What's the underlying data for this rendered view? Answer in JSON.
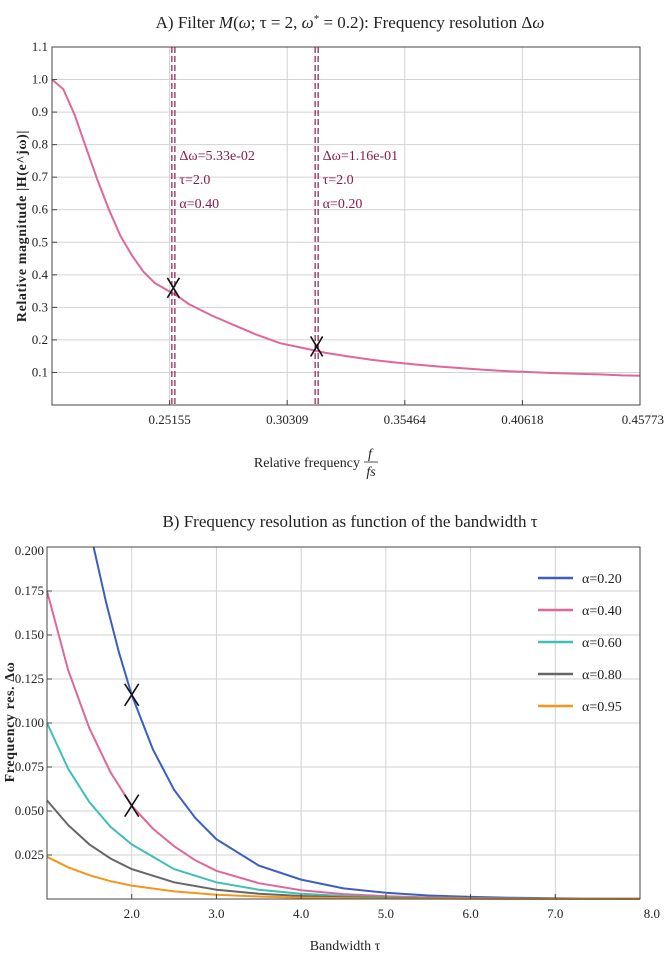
{
  "colors": {
    "alpha_020": "#3a5fbf",
    "alpha_040": "#e0669c",
    "alpha_060": "#3fbfb5",
    "alpha_080": "#666666",
    "alpha_095": "#f3961b",
    "grid": "#d2d2d2",
    "annotation": "#8a1a4f"
  },
  "chart_data": [
    {
      "type": "line",
      "title_parts": [
        "A) Filter ",
        "M",
        "(",
        "ω",
        "; τ = 2, ",
        "ω",
        "*",
        " = 0.2): Frequency resolution Δ",
        "ω"
      ],
      "xlabel": "Relative frequency",
      "xlabel_fraction": {
        "num": "f",
        "den": "fs"
      },
      "ylabel": "Relative magnitude |H(e^jω)|",
      "x_ticks": [
        "0.25155",
        "0.30309",
        "0.35464",
        "0.40618",
        "0.45773"
      ],
      "y_ticks": [
        "0.1",
        "0.2",
        "0.3",
        "0.4",
        "0.5",
        "0.6",
        "0.7",
        "0.8",
        "0.9",
        "1.0",
        "1.1"
      ],
      "xlim": [
        0.2,
        0.45773
      ],
      "ylim": [
        0.0,
        1.1
      ],
      "grid": true,
      "series": [
        {
          "color": "#e0669c",
          "x": [
            0.2,
            0.205,
            0.21,
            0.215,
            0.22,
            0.225,
            0.23,
            0.235,
            0.24,
            0.245,
            0.25,
            0.255,
            0.26,
            0.27,
            0.28,
            0.29,
            0.3,
            0.31,
            0.32,
            0.33,
            0.34,
            0.35,
            0.36,
            0.37,
            0.38,
            0.39,
            0.4,
            0.41,
            0.42,
            0.43,
            0.44,
            0.45,
            0.45773
          ],
          "y": [
            1.0,
            0.97,
            0.89,
            0.79,
            0.69,
            0.6,
            0.52,
            0.46,
            0.41,
            0.375,
            0.355,
            0.335,
            0.31,
            0.275,
            0.245,
            0.215,
            0.19,
            0.175,
            0.16,
            0.149,
            0.139,
            0.131,
            0.124,
            0.118,
            0.113,
            0.108,
            0.104,
            0.101,
            0.098,
            0.096,
            0.094,
            0.091,
            0.09
          ]
        }
      ],
      "markers": [
        {
          "x": 0.2532,
          "y": 0.36
        },
        {
          "x": 0.316,
          "y": 0.18
        }
      ],
      "vlines": [
        {
          "x": 0.2532,
          "labels": [
            "Δω=5.33e-02",
            "τ=2.0",
            "α=0.40"
          ]
        },
        {
          "x": 0.316,
          "labels": [
            "Δω=1.16e-01",
            "τ=2.0",
            "α=0.20"
          ]
        }
      ]
    },
    {
      "type": "line",
      "title": "B) Frequency resolution as function of the bandwidth τ",
      "xlabel": "Bandwidth τ",
      "ylabel": "Frequency res. Δω",
      "x_ticks": [
        "2.0",
        "3.0",
        "4.0",
        "5.0",
        "6.0",
        "7.0",
        "8.0"
      ],
      "y_ticks": [
        "0.025",
        "0.050",
        "0.075",
        "0.100",
        "0.125",
        "0.150",
        "0.175",
        "0.200"
      ],
      "xlim": [
        1.0,
        8.0
      ],
      "ylim": [
        0.0,
        0.2
      ],
      "grid": true,
      "legend_position": "top-right",
      "series": [
        {
          "name": "α=0.20",
          "color": "#3a5fbf",
          "x": [
            1.55,
            1.7,
            1.85,
            2.0,
            2.25,
            2.5,
            2.75,
            3.0,
            3.5,
            4.0,
            4.5,
            5.0,
            5.5,
            6.0,
            6.5,
            7.0,
            7.5,
            8.0
          ],
          "y": [
            0.2,
            0.168,
            0.14,
            0.116,
            0.085,
            0.062,
            0.046,
            0.034,
            0.019,
            0.011,
            0.006,
            0.0035,
            0.002,
            0.0012,
            0.0007,
            0.0004,
            0.0002,
            0.0001
          ]
        },
        {
          "name": "α=0.40",
          "color": "#e0669c",
          "x": [
            1.0,
            1.25,
            1.5,
            1.75,
            2.0,
            2.25,
            2.5,
            2.75,
            3.0,
            3.5,
            4.0,
            4.5,
            5.0,
            5.5,
            6.0,
            6.5,
            7.0,
            7.5,
            8.0
          ],
          "y": [
            0.175,
            0.13,
            0.097,
            0.072,
            0.053,
            0.04,
            0.03,
            0.022,
            0.016,
            0.009,
            0.005,
            0.0028,
            0.0016,
            0.0009,
            0.0005,
            0.0003,
            0.0002,
            0.0001,
            0.0001
          ]
        },
        {
          "name": "α=0.60",
          "color": "#3fbfb5",
          "x": [
            1.0,
            1.25,
            1.5,
            1.75,
            2.0,
            2.5,
            3.0,
            3.5,
            4.0,
            4.5,
            5.0,
            5.5,
            6.0,
            7.0,
            8.0
          ],
          "y": [
            0.1,
            0.074,
            0.055,
            0.041,
            0.031,
            0.017,
            0.0095,
            0.0053,
            0.003,
            0.0017,
            0.001,
            0.0006,
            0.0003,
            0.0001,
            0.0001
          ]
        },
        {
          "name": "α=0.80",
          "color": "#666666",
          "x": [
            1.0,
            1.25,
            1.5,
            1.75,
            2.0,
            2.5,
            3.0,
            3.5,
            4.0,
            4.5,
            5.0,
            6.0,
            7.0,
            8.0
          ],
          "y": [
            0.056,
            0.042,
            0.031,
            0.023,
            0.017,
            0.0095,
            0.0053,
            0.003,
            0.0017,
            0.001,
            0.0006,
            0.0002,
            0.0001,
            0.0001
          ]
        },
        {
          "name": "α=0.95",
          "color": "#f3961b",
          "x": [
            1.0,
            1.25,
            1.5,
            1.75,
            2.0,
            2.5,
            3.0,
            3.5,
            4.0,
            4.5,
            5.0,
            6.0,
            7.0,
            8.0
          ],
          "y": [
            0.024,
            0.018,
            0.0135,
            0.0101,
            0.0076,
            0.0043,
            0.0024,
            0.0014,
            0.0008,
            0.0005,
            0.0003,
            0.0001,
            0.0001,
            0.0001
          ]
        }
      ],
      "markers": [
        {
          "x": 2.0,
          "y": 0.116
        },
        {
          "x": 2.0,
          "y": 0.053
        }
      ]
    }
  ]
}
